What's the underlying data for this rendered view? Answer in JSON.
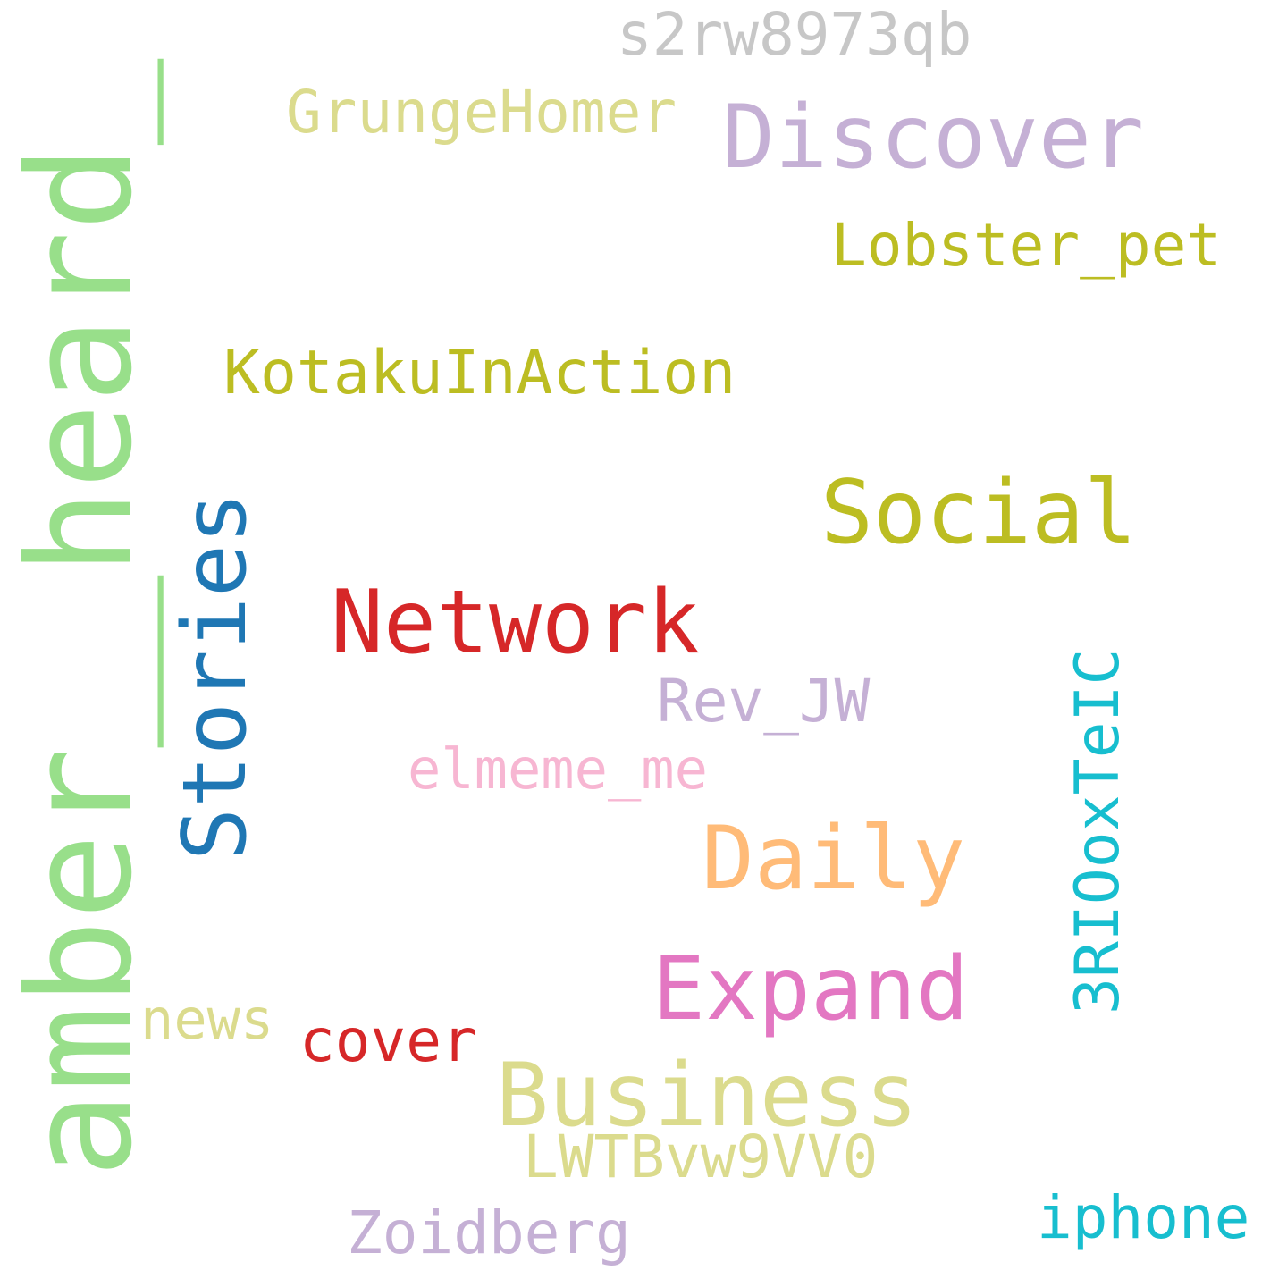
{
  "words": [
    {
      "text": "s2rw8973qb",
      "color": "#c7c7c7"
    },
    {
      "text": "GrungeHomer",
      "color": "#dbdb8d"
    },
    {
      "text": "Discover",
      "color": "#c5b0d5"
    },
    {
      "text": "Lobster_pet",
      "color": "#bcbd22"
    },
    {
      "text": "KotakuInAction",
      "color": "#bcbd22"
    },
    {
      "text": "Social",
      "color": "#bcbd22"
    },
    {
      "text": "Network",
      "color": "#d62728"
    },
    {
      "text": "Rev_JW",
      "color": "#c5b0d5"
    },
    {
      "text": "elmeme_me",
      "color": "#f7b6d2"
    },
    {
      "text": "Daily",
      "color": "#ffbb78"
    },
    {
      "text": "Expand",
      "color": "#e377c2"
    },
    {
      "text": "news",
      "color": "#dbdb8d"
    },
    {
      "text": "cover",
      "color": "#d62728"
    },
    {
      "text": "Business",
      "color": "#dbdb8d"
    },
    {
      "text": "LWTBvw9VV0",
      "color": "#dbdb8d"
    },
    {
      "text": "Zoidberg",
      "color": "#c5b0d5"
    },
    {
      "text": "iphone",
      "color": "#17becf"
    },
    {
      "text": "amber__heard_",
      "color": "#98df8a"
    },
    {
      "text": "Stories",
      "color": "#1f77b4"
    },
    {
      "text": "3RIOoxTeIC",
      "color": "#17becf"
    }
  ]
}
